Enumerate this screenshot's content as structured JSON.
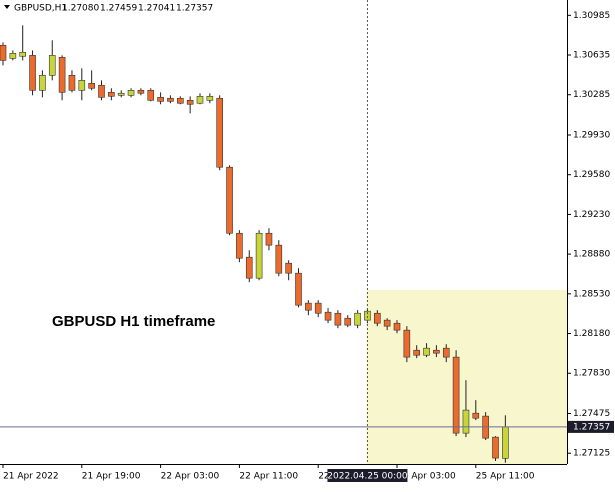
{
  "chart_data": {
    "type": "candlestick",
    "header": {
      "symbol": "GBPUSD,H1",
      "ohlc_labels": [
        "1.27080",
        "1.27459",
        "1.27041",
        "1.27357"
      ]
    },
    "annotation": "GBPUSD H1 timeframe",
    "bull_color": "#c8d53a",
    "bear_color": "#ec6a2c",
    "open": [
      1.30721,
      1.30606,
      1.30624,
      1.30632,
      1.30324,
      1.30456,
      1.30615,
      1.30456,
      1.30324,
      1.30386,
      1.30368,
      1.30306,
      1.3028,
      1.3028,
      1.30324,
      1.30324,
      1.30262,
      1.30254,
      1.30254,
      1.30236,
      1.3021,
      1.30236,
      1.30254,
      1.29646,
      1.29064,
      1.28853,
      1.28668,
      1.29064,
      1.28959,
      1.288,
      1.28712,
      1.28448,
      1.28448,
      1.28368,
      1.28359,
      1.28315,
      1.28254,
      1.28298,
      1.28359,
      1.28298,
      1.28271,
      1.2821,
      1.28033,
      1.27989,
      1.28033,
      1.28051,
      1.27972,
      1.27302,
      1.27478,
      1.27452,
      1.27267,
      1.2708
    ],
    "high": [
      1.30747,
      1.30676,
      1.30897,
      1.30676,
      1.305,
      1.30765,
      1.30632,
      1.305,
      1.30518,
      1.305,
      1.30412,
      1.30342,
      1.30324,
      1.30342,
      1.30342,
      1.30342,
      1.30306,
      1.3028,
      1.30271,
      1.30271,
      1.30298,
      1.30298,
      1.3028,
      1.29663,
      1.29091,
      1.28914,
      1.29091,
      1.29108,
      1.29003,
      1.28826,
      1.28756,
      1.28474,
      1.28474,
      1.28404,
      1.28386,
      1.28342,
      1.28386,
      1.28404,
      1.28386,
      1.28315,
      1.28298,
      1.28245,
      1.28077,
      1.28095,
      1.28077,
      1.28086,
      1.28033,
      1.27769,
      1.27593,
      1.27487,
      1.27276,
      1.27459
    ],
    "low": [
      1.30544,
      1.30588,
      1.30588,
      1.3028,
      1.30262,
      1.30412,
      1.30236,
      1.30306,
      1.30236,
      1.30324,
      1.30236,
      1.30236,
      1.30262,
      1.30262,
      1.3028,
      1.30227,
      1.30201,
      1.3021,
      1.30201,
      1.30121,
      1.30201,
      1.3021,
      1.29619,
      1.29047,
      1.28809,
      1.28633,
      1.2865,
      1.28914,
      1.28685,
      1.2865,
      1.28412,
      1.28342,
      1.28324,
      1.28271,
      1.28227,
      1.28236,
      1.28227,
      1.28271,
      1.28245,
      1.2821,
      1.28183,
      1.27928,
      1.27963,
      1.27972,
      1.27972,
      1.27928,
      1.27276,
      1.27267,
      1.27417,
      1.27241,
      1.27056,
      1.27041
    ],
    "close": [
      1.30588,
      1.3065,
      1.30659,
      1.30324,
      1.30456,
      1.30632,
      1.30306,
      1.30324,
      1.30412,
      1.30342,
      1.30262,
      1.30271,
      1.30298,
      1.30324,
      1.30298,
      1.30236,
      1.30227,
      1.30227,
      1.3021,
      1.30201,
      1.30271,
      1.30271,
      1.29646,
      1.29064,
      1.28844,
      1.28668,
      1.29064,
      1.28959,
      1.28712,
      1.28712,
      1.2843,
      1.28386,
      1.28359,
      1.28298,
      1.28254,
      1.28254,
      1.28359,
      1.28377,
      1.28271,
      1.28245,
      1.2821,
      1.27972,
      1.27989,
      1.28051,
      1.28007,
      1.27972,
      1.27302,
      1.27505,
      1.27434,
      1.27258,
      1.27082,
      1.27357
    ],
    "ylim": [
      1.2703,
      1.3112
    ],
    "yticks": [
      1.30985,
      1.30635,
      1.30285,
      {
        "value": 1.2993,
        "label": "1.29930"
      },
      {
        "value": 1.2958,
        "label": "1.29580"
      },
      {
        "value": 1.2923,
        "label": "1.29230"
      },
      {
        "value": 1.2888,
        "label": "1.28880"
      },
      {
        "value": 1.2853,
        "label": "1.28530"
      },
      {
        "value": 1.2818,
        "label": "1.28180"
      },
      {
        "value": 1.2783,
        "label": "1.27830"
      },
      1.27475,
      1.27125
    ],
    "xticks": [
      {
        "value": 0,
        "label": "21 Apr 2022"
      },
      {
        "value": 8,
        "label": "21 Apr 19:00"
      },
      {
        "value": 16,
        "label": "22 Apr 03:00"
      },
      {
        "value": 24,
        "label": "22 Apr 11:00"
      },
      {
        "value": 32,
        "label": "22 Apr 19:00"
      },
      {
        "value": 40,
        "label": "25 Apr 03:00"
      },
      {
        "value": 48,
        "label": "25 Apr 11:00"
      }
    ],
    "last_price": 1.27357,
    "crosshair": {
      "index": 37,
      "label": "2022.04.25 00:00"
    },
    "highlight": {
      "start": 37,
      "ymin": 1.2703,
      "ymax": 1.28564,
      "color": "#f8f6cc"
    }
  }
}
